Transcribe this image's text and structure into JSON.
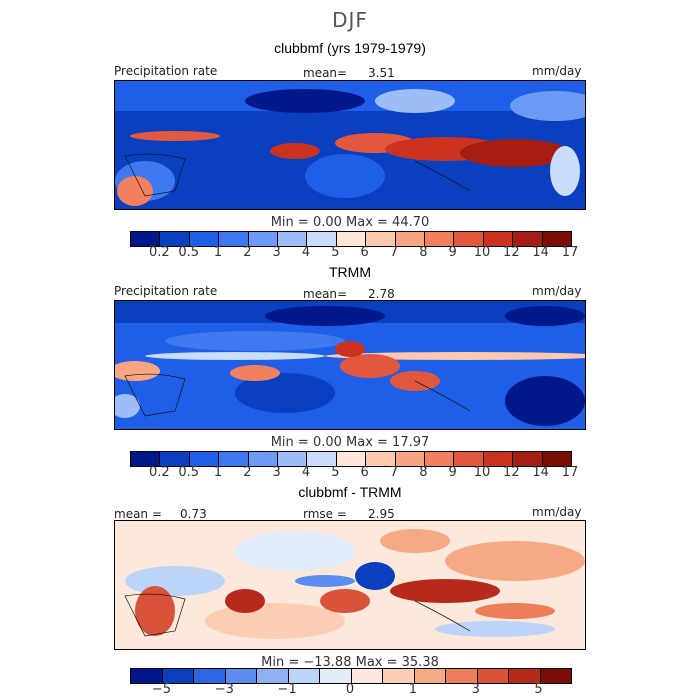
{
  "title": "DJF",
  "panels": [
    {
      "subtitle": "clubbmf (yrs 1979-1979)",
      "left_label": "Precipitation rate",
      "mean_label": "mean=",
      "mean_value": "3.51",
      "units": "mm/day",
      "minmax": "Min =   0.00 Max =  44.70"
    },
    {
      "subtitle": "TRMM",
      "left_label": "Precipitation rate",
      "mean_label": "mean=",
      "mean_value": "2.78",
      "units": "mm/day",
      "minmax": "Min =   0.00 Max =  17.97"
    },
    {
      "subtitle": "clubbmf - TRMM",
      "left_label": "mean =",
      "left_value": "0.73",
      "mean_label": "rmse =",
      "mean_value": "2.95",
      "units": "mm/day",
      "minmax": "Min = −13.88 Max =  35.38"
    }
  ],
  "colorbar_precip": {
    "colors": [
      "#00188a",
      "#0a3fc0",
      "#1f5ee6",
      "#3e79f0",
      "#6b9bf5",
      "#9dbdf7",
      "#c9dcf9",
      "#ffe8da",
      "#fcc8ae",
      "#f7a583",
      "#f0805e",
      "#e2583e",
      "#cc3220",
      "#a51d10",
      "#7a0e05"
    ],
    "labels": [
      "0.2",
      "0.5",
      "1",
      "2",
      "3",
      "4",
      "5",
      "6",
      "7",
      "8",
      "9",
      "10",
      "12",
      "14",
      "17"
    ]
  },
  "colorbar_diff": {
    "colors": [
      "#00188a",
      "#0a3fc0",
      "#2f66e6",
      "#5b8cf0",
      "#8fb2f5",
      "#bcd4f8",
      "#e3ecfb",
      "#fde9dc",
      "#fbcdb3",
      "#f5a985",
      "#ec7f5a",
      "#d9523a",
      "#b7291a",
      "#7a0e05"
    ],
    "labels": [
      "−5",
      "−3",
      "−1",
      "0",
      "1",
      "3",
      "5"
    ]
  }
}
